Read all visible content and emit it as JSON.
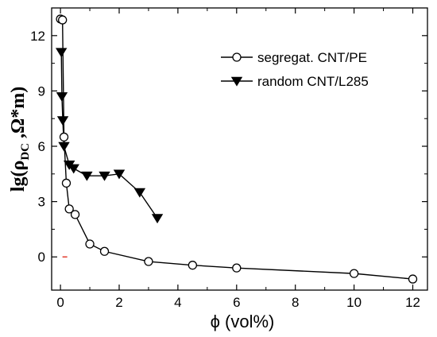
{
  "chart_data": {
    "type": "line",
    "title": "",
    "xlabel": "ϕ (vol%)",
    "ylabel": {
      "prefix": "lg(ρ",
      "subscript": "DC",
      "suffix": " ,Ω*m)"
    },
    "xlim": [
      -0.3,
      12.5
    ],
    "ylim": [
      -1.8,
      13.5
    ],
    "xticks": [
      0,
      2,
      4,
      6,
      8,
      10,
      12
    ],
    "yticks": [
      0,
      3,
      6,
      9,
      12
    ],
    "grid": false,
    "legend_position": "top-right",
    "series": [
      {
        "name": "segregat. CNT/PE",
        "marker": "open-circle",
        "color": "#000000",
        "points": [
          [
            0.0,
            12.9
          ],
          [
            0.07,
            12.85
          ],
          [
            0.12,
            6.5
          ],
          [
            0.2,
            4.0
          ],
          [
            0.3,
            2.6
          ],
          [
            0.5,
            2.3
          ],
          [
            1.0,
            0.7
          ],
          [
            1.5,
            0.3
          ],
          [
            3.0,
            -0.25
          ],
          [
            4.5,
            -0.45
          ],
          [
            6.0,
            -0.6
          ],
          [
            10.0,
            -0.9
          ],
          [
            12.0,
            -1.2
          ]
        ]
      },
      {
        "name": "random CNT/L285",
        "marker": "filled-triangle-down",
        "color": "#000000",
        "points": [
          [
            0.03,
            11.1
          ],
          [
            0.05,
            8.7
          ],
          [
            0.08,
            7.4
          ],
          [
            0.12,
            6.0
          ],
          [
            0.3,
            5.0
          ],
          [
            0.45,
            4.8
          ],
          [
            0.9,
            4.4
          ],
          [
            1.5,
            4.4
          ],
          [
            2.0,
            4.5
          ],
          [
            2.7,
            3.5
          ],
          [
            3.3,
            2.1
          ]
        ]
      }
    ]
  },
  "annotation": {
    "x": 0.15,
    "y": 0.0,
    "color": "#e03020"
  }
}
